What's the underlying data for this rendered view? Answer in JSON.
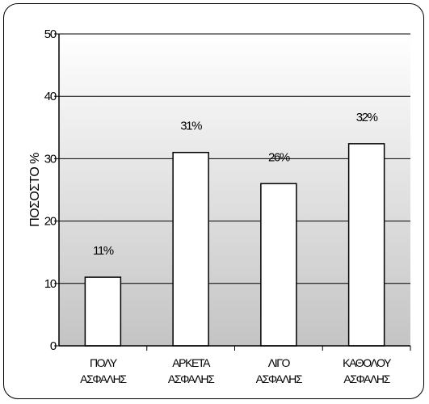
{
  "chart_data": {
    "type": "bar",
    "categories": [
      [
        "ΠΟΛΥ",
        "ΑΣΦΑΛΗΣ"
      ],
      [
        "ΑΡΚΕΤΑ",
        "ΑΣΦΑΛΗΣ"
      ],
      [
        "ΛΙΓΟ",
        "ΑΣΦΑΛΗΣ"
      ],
      [
        "ΚΑΘΟΛΟΥ",
        "ΑΣΦΑΛΗΣ"
      ]
    ],
    "values": [
      11,
      31,
      26,
      32.4
    ],
    "data_labels": [
      "11%",
      "31%",
      "26%",
      "32%"
    ],
    "title": "",
    "xlabel": "",
    "ylabel": "ΠΟΣΟΣΤΟ %",
    "ylim": [
      0,
      50
    ],
    "yticks": [
      0,
      10,
      20,
      30,
      40,
      50
    ],
    "grid": true,
    "legend": "none",
    "colors": {
      "bar_fill": "#ffffff",
      "bar_stroke": "#000000",
      "plot_gradient_top": "#ffffff",
      "plot_gradient_bottom": "#c4c4c4",
      "gridline": "#000000"
    }
  }
}
